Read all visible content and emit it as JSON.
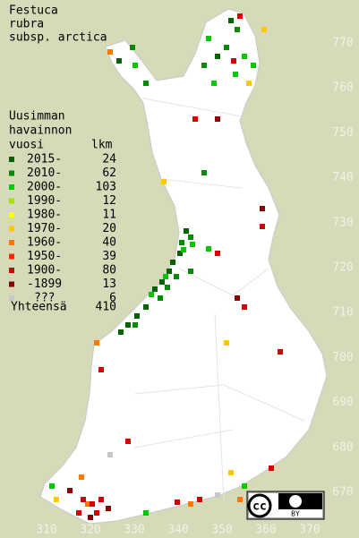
{
  "map": {
    "title": [
      "Festuca",
      "rubra",
      "subsp. arctica"
    ],
    "legend": {
      "header": [
        "Uusimman",
        "havainnon"
      ],
      "year_header": "vuosi",
      "count_header": "lkm",
      "rows": [
        {
          "label": "2015-",
          "count": 24,
          "color": "#006400"
        },
        {
          "label": "2010-",
          "count": 62,
          "color": "#008c00"
        },
        {
          "label": "2000-",
          "count": 103,
          "color": "#00c800"
        },
        {
          "label": "1990-",
          "count": 12,
          "color": "#a0e600"
        },
        {
          "label": "1980-",
          "count": 11,
          "color": "#ffff00"
        },
        {
          "label": "1970-",
          "count": 20,
          "color": "#ffc800"
        },
        {
          "label": "1960-",
          "count": 40,
          "color": "#ff7800"
        },
        {
          "label": "1950-",
          "count": 39,
          "color": "#ff2800"
        },
        {
          "label": "1900-",
          "count": 80,
          "color": "#d20000"
        },
        {
          "label": "-1899",
          "count": 13,
          "color": "#8c0000"
        },
        {
          "label": "???",
          "count": 6,
          "color": "#c8c8c8"
        }
      ],
      "total": {
        "label": "Yhteensä",
        "count": 410
      }
    },
    "xticks": [
      310,
      320,
      330,
      340,
      350,
      360,
      370
    ],
    "yticks": [
      770,
      760,
      750,
      740,
      730,
      720,
      710,
      700,
      690,
      680,
      670
    ],
    "license": "BY"
  }
}
